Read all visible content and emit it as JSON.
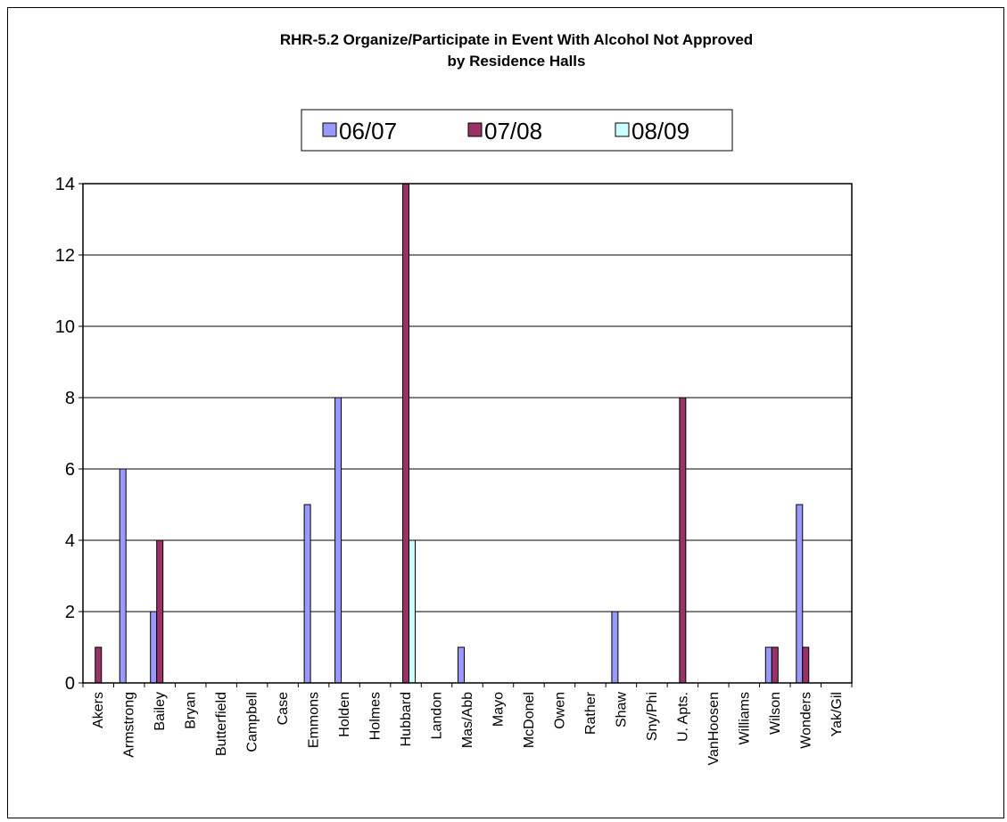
{
  "chart_data": {
    "type": "bar",
    "title": "RHR-5.2 Organize/Participate in Event With Alcohol Not Approved",
    "subtitle": "by Residence Halls",
    "xlabel": "",
    "ylabel": "",
    "ylim": [
      0,
      14
    ],
    "yticks": [
      0,
      2,
      4,
      6,
      8,
      10,
      12,
      14
    ],
    "grid": true,
    "legend_position": "top",
    "categories": [
      "Akers",
      "Armstrong",
      "Bailey",
      "Bryan",
      "Butterfield",
      "Campbell",
      "Case",
      "Emmons",
      "Holden",
      "Holmes",
      "Hubbard",
      "Landon",
      "Mas/Abb",
      "Mayo",
      "McDonel",
      "Owen",
      "Rather",
      "Shaw",
      "Sny/Phi",
      "U. Apts.",
      "VanHoosen",
      "Williams",
      "Wilson",
      "Wonders",
      "Yak/Gil"
    ],
    "series": [
      {
        "name": "06/07",
        "color": "#9999ff",
        "values": [
          0,
          6,
          2,
          0,
          0,
          0,
          0,
          5,
          8,
          0,
          0,
          0,
          1,
          0,
          0,
          0,
          0,
          2,
          0,
          0,
          0,
          0,
          1,
          5,
          0
        ]
      },
      {
        "name": "07/08",
        "color": "#993366",
        "values": [
          1,
          0,
          4,
          0,
          0,
          0,
          0,
          0,
          0,
          0,
          14,
          0,
          0,
          0,
          0,
          0,
          0,
          0,
          0,
          8,
          0,
          0,
          1,
          1,
          0
        ]
      },
      {
        "name": "08/09",
        "color": "#ccffff",
        "values": [
          0,
          0,
          0,
          0,
          0,
          0,
          0,
          0,
          0,
          0,
          4,
          0,
          0,
          0,
          0,
          0,
          0,
          0,
          0,
          0,
          0,
          0,
          0,
          0,
          0
        ]
      }
    ]
  }
}
